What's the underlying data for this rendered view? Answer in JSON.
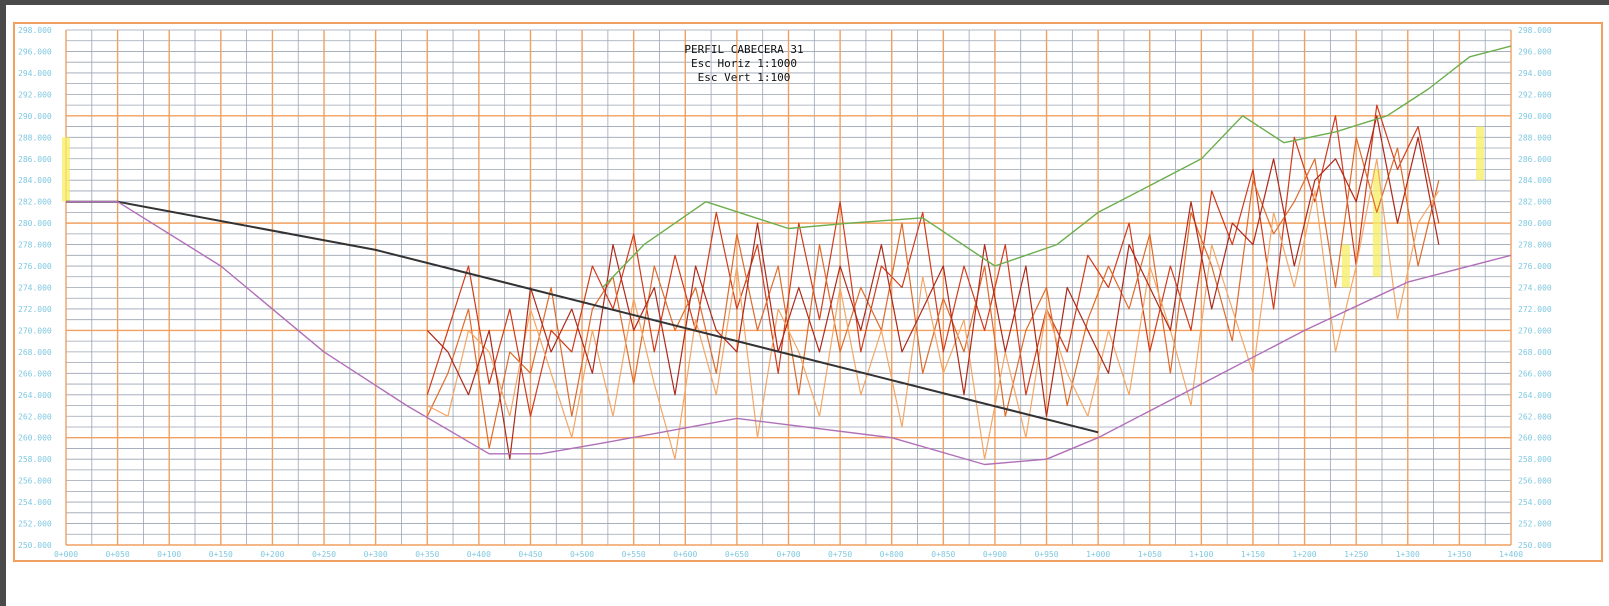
{
  "chart_data": {
    "type": "line",
    "title": "PERFIL CABECERA 31",
    "subtitle_lines": [
      "Esc Horiz 1:1000",
      "Esc Vert 1:100"
    ],
    "xlabel": "",
    "ylabel": "",
    "xlim": [
      0,
      1400
    ],
    "ylim": [
      250,
      298
    ],
    "grid": true,
    "legend": "none",
    "y_ticks": [
      "250.000",
      "252.000",
      "254.000",
      "256.000",
      "258.000",
      "260.000",
      "262.000",
      "264.000",
      "266.000",
      "268.000",
      "270.000",
      "272.000",
      "274.000",
      "276.000",
      "278.000",
      "280.000",
      "282.000",
      "284.000",
      "286.000",
      "288.000",
      "290.000",
      "292.000",
      "294.000",
      "296.000",
      "298.000"
    ],
    "x_ticks": [
      "0+000",
      "0+050",
      "0+100",
      "0+150",
      "0+200",
      "0+250",
      "0+300",
      "0+350",
      "0+400",
      "0+450",
      "0+500",
      "0+550",
      "0+600",
      "0+650",
      "0+700",
      "0+750",
      "0+800",
      "0+850",
      "0+900",
      "0+950",
      "1+000",
      "1+050",
      "1+100",
      "1+150",
      "1+200",
      "1+250",
      "1+300",
      "1+350",
      "1+400"
    ],
    "colors": {
      "grid_minor": "#9aa4b4",
      "grid_major": "#f0a060",
      "border": "#f0a060",
      "ticks": "#7fc8e0",
      "design_line": "#333333",
      "existing_ground": "#b070b8",
      "green_profile": "#6cae4c",
      "highlight": "#f7ee60"
    },
    "series": [
      {
        "values_role": "design-grade",
        "color": "#333333",
        "x": [
          0,
          50,
          300,
          1000
        ],
        "y": [
          282,
          282,
          277.5,
          260.5
        ]
      },
      {
        "values_role": "existing-ground",
        "color": "#b070b8",
        "x": [
          0,
          50,
          150,
          175,
          250,
          330,
          410,
          460,
          520,
          650,
          800,
          890,
          950,
          1000,
          1100,
          1200,
          1300,
          1400
        ],
        "y": [
          282,
          282,
          276,
          274,
          268,
          263,
          258.5,
          258.5,
          259.5,
          261.8,
          260,
          257.5,
          258,
          260,
          265,
          270,
          274.5,
          277
        ]
      },
      {
        "values_role": "green-profile",
        "color": "#6cae4c",
        "x": [
          520,
          560,
          620,
          700,
          760,
          830,
          900,
          960,
          1000,
          1050,
          1100,
          1140,
          1180,
          1230,
          1280,
          1320,
          1360,
          1400
        ],
        "y": [
          274,
          278,
          282,
          279.5,
          280,
          280.5,
          276,
          278,
          281,
          283.5,
          286,
          290,
          287.5,
          288.5,
          290,
          292.5,
          295.5,
          296.5
        ]
      },
      {
        "values_role": "cross-section-1",
        "color": "#d33a18",
        "x": [
          350,
          370,
          390,
          410,
          430,
          450,
          470,
          490,
          510,
          530,
          550,
          570,
          590,
          610,
          630,
          650,
          670,
          690,
          710,
          730,
          750,
          770,
          790,
          810,
          830,
          850,
          870,
          890,
          910,
          930,
          950,
          970,
          990,
          1010,
          1030,
          1050,
          1070,
          1090,
          1110,
          1130,
          1150,
          1170,
          1190,
          1210,
          1230,
          1250,
          1270,
          1290,
          1310,
          1330
        ],
        "y": [
          264,
          270,
          276,
          265,
          272,
          262,
          270,
          268,
          276,
          272,
          279,
          268,
          277,
          270,
          281,
          272,
          278,
          266,
          280,
          271,
          282,
          268,
          276,
          274,
          281,
          268,
          276,
          270,
          278,
          264,
          272,
          268,
          277,
          274,
          280,
          268,
          276,
          270,
          283,
          278,
          285,
          272,
          288,
          282,
          290,
          276,
          291,
          285,
          289,
          280
        ]
      },
      {
        "values_role": "cross-section-2",
        "color": "#e06a28",
        "x": [
          350,
          370,
          390,
          410,
          430,
          450,
          470,
          490,
          510,
          530,
          550,
          570,
          590,
          610,
          630,
          650,
          670,
          690,
          710,
          730,
          750,
          770,
          790,
          810,
          830,
          850,
          870,
          890,
          910,
          930,
          950,
          970,
          990,
          1010,
          1030,
          1050,
          1070,
          1090,
          1110,
          1130,
          1150,
          1170,
          1190,
          1210,
          1230,
          1250,
          1270,
          1290,
          1310,
          1330
        ],
        "y": [
          262,
          266,
          272,
          259,
          268,
          266,
          274,
          262,
          272,
          275,
          265,
          276,
          270,
          274,
          266,
          279,
          270,
          276,
          264,
          278,
          268,
          274,
          270,
          280,
          266,
          273,
          268,
          276,
          262,
          270,
          274,
          263,
          271,
          276,
          272,
          279,
          266,
          281,
          276,
          269,
          284,
          279,
          282,
          286,
          274,
          288,
          281,
          287,
          276,
          284
        ]
      },
      {
        "values_role": "cross-section-3",
        "color": "#f4a664",
        "x": [
          350,
          370,
          390,
          410,
          430,
          450,
          470,
          490,
          510,
          530,
          550,
          570,
          590,
          610,
          630,
          650,
          670,
          690,
          710,
          730,
          750,
          770,
          790,
          810,
          830,
          850,
          870,
          890,
          910,
          930,
          950,
          970,
          990,
          1010,
          1030,
          1050,
          1070,
          1090,
          1110,
          1130,
          1150,
          1170,
          1190,
          1210,
          1230,
          1250,
          1270,
          1290,
          1310,
          1330
        ],
        "y": [
          263,
          262,
          270,
          268,
          262,
          272,
          266,
          260,
          270,
          262,
          273,
          265,
          258,
          271,
          264,
          276,
          260,
          272,
          268,
          262,
          274,
          264,
          270,
          261,
          275,
          266,
          271,
          258,
          268,
          260,
          272,
          266,
          262,
          270,
          264,
          276,
          270,
          263,
          278,
          272,
          266,
          281,
          274,
          283,
          268,
          276,
          286,
          271,
          280,
          283
        ]
      },
      {
        "values_role": "cross-section-4",
        "color": "#b02818",
        "x": [
          350,
          370,
          390,
          410,
          430,
          450,
          470,
          490,
          510,
          530,
          550,
          570,
          590,
          610,
          630,
          650,
          670,
          690,
          710,
          730,
          750,
          770,
          790,
          810,
          830,
          850,
          870,
          890,
          910,
          930,
          950,
          970,
          990,
          1010,
          1030,
          1050,
          1070,
          1090,
          1110,
          1130,
          1150,
          1170,
          1190,
          1210,
          1230,
          1250,
          1270,
          1290,
          1310,
          1330
        ],
        "y": [
          270,
          268,
          264,
          270,
          258,
          274,
          268,
          272,
          266,
          278,
          270,
          274,
          264,
          276,
          270,
          268,
          280,
          268,
          274,
          268,
          276,
          270,
          278,
          268,
          272,
          276,
          264,
          278,
          268,
          276,
          262,
          274,
          270,
          266,
          278,
          274,
          270,
          282,
          272,
          280,
          278,
          286,
          276,
          284,
          286,
          282,
          290,
          280,
          288,
          278
        ]
      }
    ],
    "highlight_bands": [
      {
        "x": 0,
        "y": [
          282,
          288
        ]
      },
      {
        "x": 1240,
        "y": [
          274,
          278
        ]
      },
      {
        "x": 1270,
        "y": [
          275,
          285
        ]
      },
      {
        "x": 1370,
        "y": [
          284,
          289
        ]
      }
    ]
  }
}
